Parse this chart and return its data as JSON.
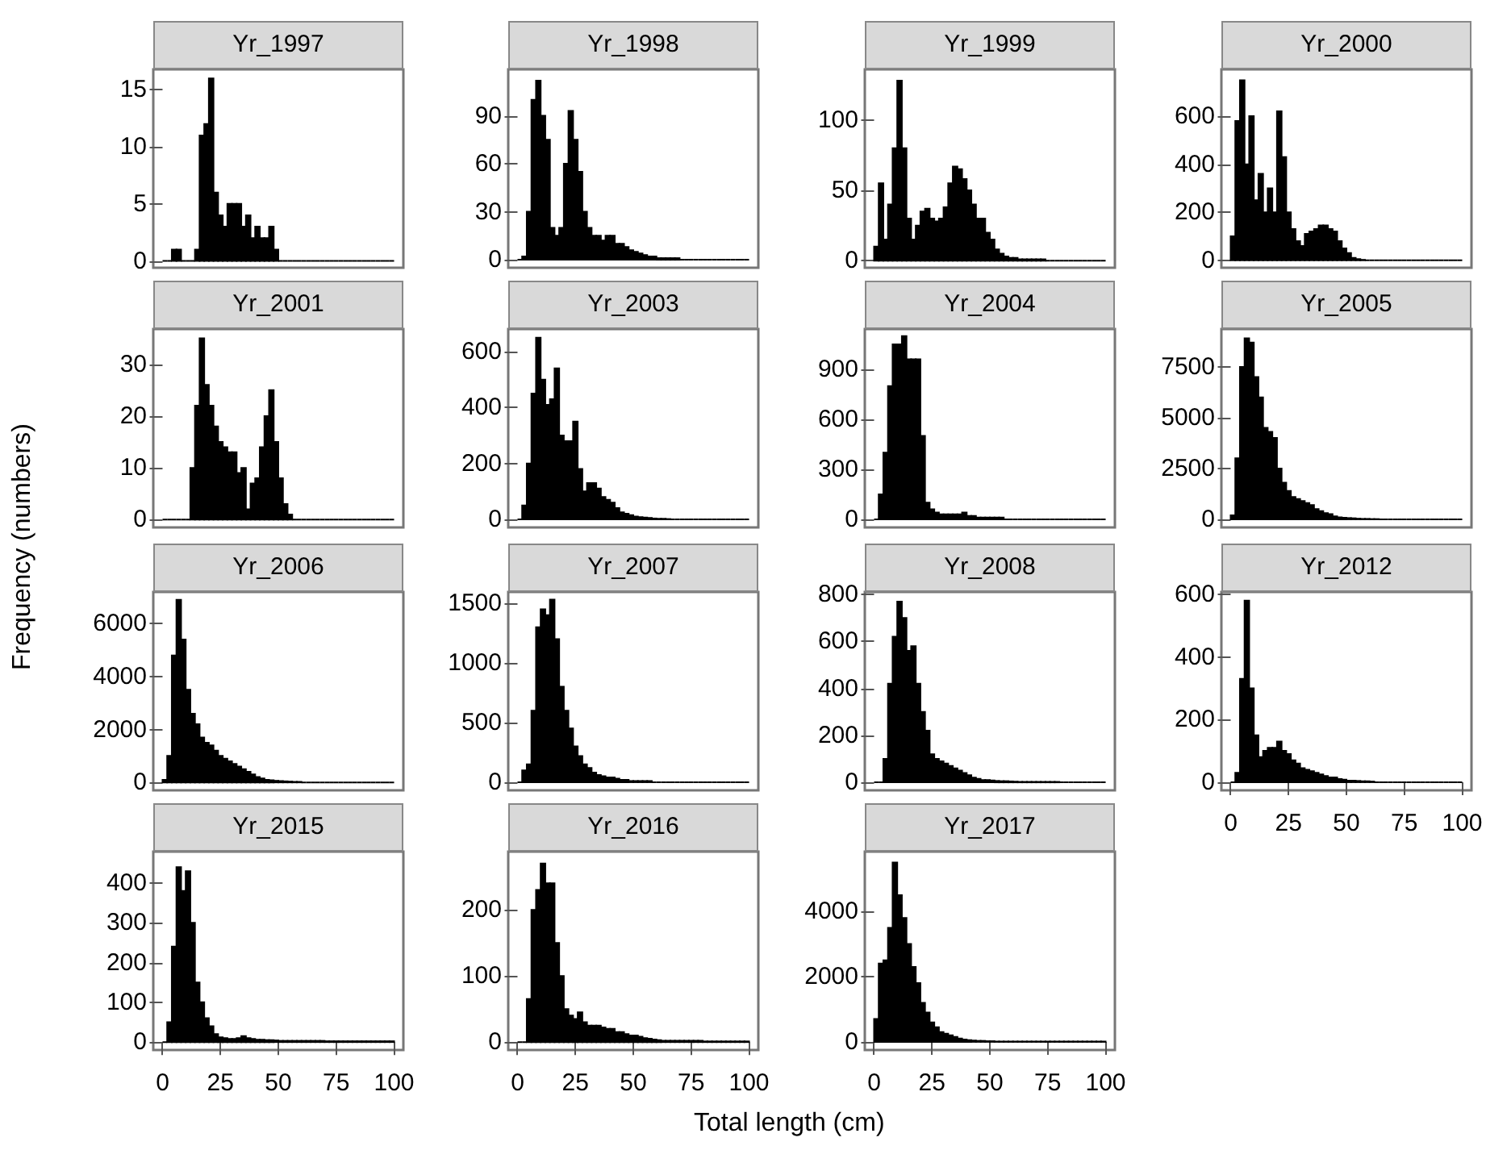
{
  "chart_data": [
    {
      "type": "histogram",
      "title": "Yr_1997",
      "color": "#000000",
      "bins": [
        0,
        2,
        4,
        6,
        8,
        10,
        12,
        14,
        16,
        18,
        20,
        22,
        24,
        26,
        28,
        30,
        32,
        34,
        36,
        38,
        40,
        42,
        44,
        46,
        48,
        50,
        52,
        54,
        56,
        58,
        60,
        62,
        64,
        66,
        68,
        70,
        72,
        74,
        76,
        78,
        80,
        82,
        84,
        86,
        88,
        90,
        92,
        94,
        96,
        98,
        100
      ],
      "values": [
        0,
        0,
        1,
        1,
        0,
        0,
        0,
        1,
        11,
        12,
        16,
        6,
        4,
        3,
        5,
        5,
        5,
        3,
        4,
        2,
        3,
        2,
        2,
        3,
        1,
        0,
        0,
        0,
        0,
        0,
        0,
        0,
        0,
        0,
        0,
        0,
        0,
        0,
        0,
        0,
        0,
        0,
        0,
        0,
        0,
        0,
        0,
        0,
        0,
        0
      ],
      "xlim": [
        -4,
        104
      ],
      "xticks": [
        0,
        25,
        50,
        75,
        100
      ],
      "ylim": [
        -0.6,
        16.8
      ],
      "yticks": [
        0,
        5,
        10,
        15
      ],
      "tick_labels": "y"
    },
    {
      "type": "histogram",
      "title": "Yr_1998",
      "color": "#000000",
      "bins": [
        0,
        2,
        4,
        6,
        8,
        10,
        12,
        14,
        16,
        18,
        20,
        22,
        24,
        26,
        28,
        30,
        32,
        34,
        36,
        38,
        40,
        42,
        44,
        46,
        48,
        50,
        52,
        54,
        56,
        58,
        60,
        62,
        64,
        66,
        68,
        70,
        72,
        74,
        76,
        78,
        80,
        82,
        84,
        86,
        88,
        90,
        92,
        94,
        96,
        98,
        100
      ],
      "values": [
        0,
        2,
        30,
        100,
        112,
        90,
        75,
        20,
        15,
        20,
        60,
        93,
        75,
        55,
        30,
        20,
        15,
        15,
        12,
        15,
        15,
        10,
        10,
        8,
        6,
        5,
        4,
        3,
        2,
        2,
        1,
        1,
        1,
        1,
        1,
        0,
        0,
        0,
        0,
        0,
        0,
        0,
        0,
        0,
        0,
        0,
        0,
        0,
        0,
        0
      ],
      "xlim": [
        -4,
        104
      ],
      "xticks": [
        0,
        25,
        50,
        75,
        100
      ],
      "ylim": [
        -5,
        119
      ],
      "yticks": [
        0,
        30,
        60,
        90
      ],
      "tick_labels": "y"
    },
    {
      "type": "histogram",
      "title": "Yr_1999",
      "color": "#000000",
      "bins": [
        0,
        2,
        4,
        6,
        8,
        10,
        12,
        14,
        16,
        18,
        20,
        22,
        24,
        26,
        28,
        30,
        32,
        34,
        36,
        38,
        40,
        42,
        44,
        46,
        48,
        50,
        52,
        54,
        56,
        58,
        60,
        62,
        64,
        66,
        68,
        70,
        72,
        74,
        76,
        78,
        80,
        82,
        84,
        86,
        88,
        90,
        92,
        94,
        96,
        98,
        100
      ],
      "values": [
        10,
        55,
        15,
        40,
        80,
        128,
        80,
        30,
        15,
        25,
        35,
        37,
        30,
        28,
        30,
        38,
        55,
        67,
        65,
        58,
        50,
        40,
        30,
        30,
        20,
        15,
        8,
        5,
        3,
        2,
        2,
        1,
        1,
        1,
        1,
        1,
        1,
        0,
        0,
        0,
        0,
        0,
        0,
        0,
        0,
        0,
        0,
        0,
        0,
        0
      ],
      "xlim": [
        -4,
        104
      ],
      "xticks": [
        0,
        25,
        50,
        75,
        100
      ],
      "ylim": [
        -5,
        136
      ],
      "yticks": [
        0,
        50,
        100
      ],
      "tick_labels": "y"
    },
    {
      "type": "histogram",
      "title": "Yr_2000",
      "color": "#000000",
      "bins": [
        0,
        2,
        4,
        6,
        8,
        10,
        12,
        14,
        16,
        18,
        20,
        22,
        24,
        26,
        28,
        30,
        32,
        34,
        36,
        38,
        40,
        42,
        44,
        46,
        48,
        50,
        52,
        54,
        56,
        58,
        60,
        62,
        64,
        66,
        68,
        70,
        72,
        74,
        76,
        78,
        80,
        82,
        84,
        86,
        88,
        90,
        92,
        94,
        96,
        98,
        100
      ],
      "values": [
        100,
        580,
        750,
        400,
        600,
        250,
        360,
        200,
        300,
        200,
        620,
        430,
        200,
        130,
        80,
        60,
        110,
        120,
        130,
        145,
        145,
        130,
        120,
        80,
        50,
        30,
        10,
        5,
        2,
        0,
        0,
        0,
        0,
        0,
        0,
        0,
        0,
        0,
        0,
        0,
        0,
        0,
        0,
        0,
        0,
        0,
        0,
        0,
        0,
        0
      ],
      "xlim": [
        -4,
        104
      ],
      "xticks": [
        0,
        25,
        50,
        75,
        100
      ],
      "ylim": [
        -31,
        795
      ],
      "yticks": [
        0,
        200,
        400,
        600
      ],
      "tick_labels": "y"
    },
    {
      "type": "histogram",
      "title": "Yr_2001",
      "color": "#000000",
      "bins": [
        0,
        2,
        4,
        6,
        8,
        10,
        12,
        14,
        16,
        18,
        20,
        22,
        24,
        26,
        28,
        30,
        32,
        34,
        36,
        38,
        40,
        42,
        44,
        46,
        48,
        50,
        52,
        54,
        56,
        58,
        60,
        62,
        64,
        66,
        68,
        70,
        72,
        74,
        76,
        78,
        80,
        82,
        84,
        86,
        88,
        90,
        92,
        94,
        96,
        98,
        100
      ],
      "values": [
        0,
        0,
        0,
        0,
        0,
        0,
        10,
        22,
        35,
        26,
        22,
        18,
        15,
        14,
        13,
        13,
        9,
        10,
        2,
        7,
        8,
        14,
        20,
        25,
        15,
        8,
        3,
        1,
        0,
        0,
        0,
        0,
        0,
        0,
        0,
        0,
        0,
        0,
        0,
        0,
        0,
        0,
        0,
        0,
        0,
        0,
        0,
        0,
        0,
        0
      ],
      "xlim": [
        -4,
        104
      ],
      "xticks": [
        0,
        25,
        50,
        75,
        100
      ],
      "ylim": [
        -1.5,
        36.8
      ],
      "yticks": [
        0,
        10,
        20,
        30
      ],
      "tick_labels": "y"
    },
    {
      "type": "histogram",
      "title": "Yr_2003",
      "color": "#000000",
      "bins": [
        0,
        2,
        4,
        6,
        8,
        10,
        12,
        14,
        16,
        18,
        20,
        22,
        24,
        26,
        28,
        30,
        32,
        34,
        36,
        38,
        40,
        42,
        44,
        46,
        48,
        50,
        52,
        54,
        56,
        58,
        60,
        62,
        64,
        66,
        68,
        70,
        72,
        74,
        76,
        78,
        80,
        82,
        84,
        86,
        88,
        90,
        92,
        94,
        96,
        98,
        100
      ],
      "values": [
        0,
        50,
        200,
        450,
        650,
        500,
        410,
        430,
        540,
        300,
        280,
        280,
        350,
        180,
        100,
        130,
        130,
        110,
        80,
        70,
        60,
        40,
        25,
        20,
        15,
        10,
        8,
        6,
        5,
        3,
        2,
        2,
        1,
        0,
        0,
        0,
        0,
        0,
        0,
        0,
        0,
        0,
        0,
        0,
        0,
        0,
        0,
        0,
        0,
        0
      ],
      "xlim": [
        -4,
        104
      ],
      "xticks": [
        0,
        25,
        50,
        75,
        100
      ],
      "ylim": [
        -29,
        681
      ],
      "yticks": [
        0,
        200,
        400,
        600
      ],
      "tick_labels": "y"
    },
    {
      "type": "histogram",
      "title": "Yr_2004",
      "color": "#000000",
      "bins": [
        0,
        2,
        4,
        6,
        8,
        10,
        12,
        14,
        16,
        18,
        20,
        22,
        24,
        26,
        28,
        30,
        32,
        34,
        36,
        38,
        40,
        42,
        44,
        46,
        48,
        50,
        52,
        54,
        56,
        58,
        60,
        62,
        64,
        66,
        68,
        70,
        72,
        74,
        76,
        78,
        80,
        82,
        84,
        86,
        88,
        90,
        92,
        94,
        96,
        98,
        100
      ],
      "values": [
        0,
        150,
        400,
        800,
        1050,
        1050,
        1100,
        960,
        960,
        960,
        500,
        100,
        60,
        40,
        30,
        30,
        30,
        30,
        30,
        40,
        20,
        20,
        10,
        10,
        10,
        10,
        10,
        10,
        0,
        0,
        0,
        0,
        0,
        0,
        0,
        0,
        0,
        0,
        0,
        0,
        0,
        0,
        0,
        0,
        0,
        0,
        0,
        0,
        0,
        0
      ],
      "xlim": [
        -4,
        104
      ],
      "xticks": [
        0,
        25,
        50,
        75,
        100
      ],
      "ylim": [
        -49,
        1142
      ],
      "yticks": [
        0,
        300,
        600,
        900
      ],
      "tick_labels": "y"
    },
    {
      "type": "histogram",
      "title": "Yr_2005",
      "color": "#000000",
      "bins": [
        0,
        2,
        4,
        6,
        8,
        10,
        12,
        14,
        16,
        18,
        20,
        22,
        24,
        26,
        28,
        30,
        32,
        34,
        36,
        38,
        40,
        42,
        44,
        46,
        48,
        50,
        52,
        54,
        56,
        58,
        60,
        62,
        64,
        66,
        68,
        70,
        72,
        74,
        76,
        78,
        80,
        82,
        84,
        86,
        88,
        90,
        92,
        94,
        96,
        98,
        100
      ],
      "values": [
        200,
        3000,
        7500,
        8900,
        8700,
        7000,
        6000,
        4500,
        4300,
        4000,
        2500,
        1800,
        1400,
        1100,
        1000,
        900,
        800,
        700,
        500,
        400,
        300,
        250,
        150,
        100,
        80,
        60,
        50,
        30,
        20,
        20,
        10,
        10,
        0,
        0,
        0,
        0,
        0,
        0,
        0,
        0,
        0,
        0,
        0,
        0,
        0,
        0,
        0,
        0,
        0,
        0
      ],
      "xlim": [
        -4,
        104
      ],
      "xticks": [
        0,
        25,
        50,
        75,
        100
      ],
      "ylim": [
        -400,
        9360
      ],
      "yticks": [
        0,
        2500,
        5000,
        7500
      ],
      "tick_labels": "y"
    },
    {
      "type": "histogram",
      "title": "Yr_2006",
      "ylabel": "Frequency (numbers)",
      "color": "#000000",
      "bins": [
        0,
        2,
        4,
        6,
        8,
        10,
        12,
        14,
        16,
        18,
        20,
        22,
        24,
        26,
        28,
        30,
        32,
        34,
        36,
        38,
        40,
        42,
        44,
        46,
        48,
        50,
        52,
        54,
        56,
        58,
        60,
        62,
        64,
        66,
        68,
        70,
        72,
        74,
        76,
        78,
        80,
        82,
        84,
        86,
        88,
        90,
        92,
        94,
        96,
        98,
        100
      ],
      "values": [
        100,
        1000,
        4800,
        6900,
        5400,
        3500,
        2600,
        2200,
        1700,
        1500,
        1400,
        1200,
        1000,
        900,
        800,
        700,
        600,
        500,
        400,
        300,
        200,
        150,
        100,
        80,
        60,
        50,
        40,
        30,
        20,
        20,
        0,
        0,
        0,
        0,
        0,
        0,
        0,
        0,
        0,
        0,
        0,
        0,
        0,
        0,
        0,
        0,
        0,
        0,
        0,
        0
      ],
      "xlim": [
        -4,
        104
      ],
      "xticks": [
        0,
        25,
        50,
        75,
        100
      ],
      "ylim": [
        -300,
        7200
      ],
      "yticks": [
        0,
        2000,
        4000,
        6000
      ],
      "tick_labels": "y"
    },
    {
      "type": "histogram",
      "title": "Yr_2007",
      "color": "#000000",
      "bins": [
        0,
        2,
        4,
        6,
        8,
        10,
        12,
        14,
        16,
        18,
        20,
        22,
        24,
        26,
        28,
        30,
        32,
        34,
        36,
        38,
        40,
        42,
        44,
        46,
        48,
        50,
        52,
        54,
        56,
        58,
        60,
        62,
        64,
        66,
        68,
        70,
        72,
        74,
        76,
        78,
        80,
        82,
        84,
        86,
        88,
        90,
        92,
        94,
        96,
        98,
        100
      ],
      "values": [
        0,
        100,
        150,
        600,
        1300,
        1450,
        1400,
        1530,
        1200,
        800,
        600,
        450,
        300,
        220,
        150,
        120,
        80,
        60,
        50,
        40,
        40,
        30,
        20,
        20,
        10,
        10,
        10,
        10,
        10,
        0,
        0,
        0,
        0,
        0,
        0,
        0,
        0,
        0,
        0,
        0,
        0,
        0,
        0,
        0,
        0,
        0,
        0,
        0,
        0,
        0
      ],
      "xlim": [
        -4,
        104
      ],
      "xticks": [
        0,
        25,
        50,
        75,
        100
      ],
      "ylim": [
        -68,
        1595
      ],
      "yticks": [
        0,
        500,
        1000,
        1500
      ],
      "tick_labels": "y"
    },
    {
      "type": "histogram",
      "title": "Yr_2008",
      "color": "#000000",
      "bins": [
        0,
        2,
        4,
        6,
        8,
        10,
        12,
        14,
        16,
        18,
        20,
        22,
        24,
        26,
        28,
        30,
        32,
        34,
        36,
        38,
        40,
        42,
        44,
        46,
        48,
        50,
        52,
        54,
        56,
        58,
        60,
        62,
        64,
        66,
        68,
        70,
        72,
        74,
        76,
        78,
        80,
        82,
        84,
        86,
        88,
        90,
        92,
        94,
        96,
        98,
        100
      ],
      "values": [
        0,
        0,
        100,
        420,
        620,
        770,
        700,
        560,
        580,
        420,
        300,
        220,
        120,
        100,
        90,
        80,
        70,
        60,
        50,
        40,
        30,
        20,
        15,
        10,
        10,
        8,
        6,
        5,
        5,
        4,
        3,
        2,
        2,
        2,
        2,
        2,
        2,
        2,
        2,
        2,
        0,
        0,
        0,
        0,
        0,
        0,
        0,
        0,
        0,
        0
      ],
      "xlim": [
        -4,
        104
      ],
      "xticks": [
        0,
        25,
        50,
        75,
        100
      ],
      "ylim": [
        -34,
        811
      ],
      "yticks": [
        0,
        200,
        400,
        600,
        800
      ],
      "tick_labels": "y"
    },
    {
      "type": "histogram",
      "title": "Yr_2012",
      "color": "#000000",
      "bins": [
        0,
        2,
        4,
        6,
        8,
        10,
        12,
        14,
        16,
        18,
        20,
        22,
        24,
        26,
        28,
        30,
        32,
        34,
        36,
        38,
        40,
        42,
        44,
        46,
        48,
        50,
        52,
        54,
        56,
        58,
        60,
        62,
        64,
        66,
        68,
        70,
        72,
        74,
        76,
        78,
        80,
        82,
        84,
        86,
        88,
        90,
        92,
        94,
        96,
        98,
        100
      ],
      "values": [
        0,
        30,
        330,
        580,
        300,
        150,
        80,
        100,
        110,
        110,
        130,
        100,
        90,
        70,
        60,
        45,
        40,
        35,
        30,
        25,
        20,
        15,
        15,
        10,
        8,
        5,
        5,
        4,
        3,
        3,
        2,
        0,
        0,
        0,
        0,
        0,
        0,
        0,
        0,
        0,
        0,
        0,
        0,
        0,
        0,
        0,
        0,
        0,
        0,
        0
      ],
      "xlim": [
        -4,
        104
      ],
      "xticks": [
        0,
        25,
        50,
        75,
        100
      ],
      "ylim": [
        -26,
        608
      ],
      "yticks": [
        0,
        200,
        400,
        600
      ]
    },
    {
      "type": "histogram",
      "title": "Yr_2015",
      "color": "#000000",
      "bins": [
        0,
        2,
        4,
        6,
        8,
        10,
        12,
        14,
        16,
        18,
        20,
        22,
        24,
        26,
        28,
        30,
        32,
        34,
        36,
        38,
        40,
        42,
        44,
        46,
        48,
        50,
        52,
        54,
        56,
        58,
        60,
        62,
        64,
        66,
        68,
        70,
        72,
        74,
        76,
        78,
        80,
        82,
        84,
        86,
        88,
        90,
        92,
        94,
        96,
        98,
        100
      ],
      "values": [
        0,
        50,
        240,
        440,
        380,
        430,
        300,
        150,
        100,
        60,
        40,
        20,
        12,
        10,
        8,
        8,
        10,
        15,
        10,
        8,
        6,
        6,
        5,
        5,
        4,
        3,
        3,
        3,
        3,
        3,
        3,
        3,
        3,
        3,
        3,
        2,
        2,
        2,
        2,
        2,
        2,
        2,
        2,
        2,
        2,
        2,
        2,
        2,
        2,
        2
      ],
      "xlim": [
        -4,
        104
      ],
      "xticks": [
        0,
        25,
        50,
        75,
        100
      ],
      "ylim": [
        -20,
        479
      ],
      "yticks": [
        0,
        100,
        200,
        300,
        400
      ]
    },
    {
      "type": "histogram",
      "title": "Yr_2016",
      "xlabel": "Total length (cm)",
      "color": "#000000",
      "bins": [
        0,
        2,
        4,
        6,
        8,
        10,
        12,
        14,
        16,
        18,
        20,
        22,
        24,
        26,
        28,
        30,
        32,
        34,
        36,
        38,
        40,
        42,
        44,
        46,
        48,
        50,
        52,
        54,
        56,
        58,
        60,
        62,
        64,
        66,
        68,
        70,
        72,
        74,
        76,
        78,
        80,
        82,
        84,
        86,
        88,
        90,
        92,
        94,
        96,
        98,
        100
      ],
      "values": [
        0,
        0,
        65,
        200,
        230,
        270,
        240,
        240,
        150,
        100,
        50,
        40,
        35,
        45,
        30,
        25,
        25,
        25,
        22,
        20,
        20,
        15,
        15,
        12,
        10,
        10,
        8,
        6,
        5,
        4,
        3,
        2,
        2,
        2,
        2,
        2,
        2,
        2,
        2,
        2,
        1,
        1,
        1,
        1,
        1,
        1,
        1,
        1,
        1,
        1
      ],
      "xlim": [
        -4,
        104
      ],
      "xticks": [
        0,
        25,
        50,
        75,
        100
      ],
      "ylim": [
        -12,
        288
      ],
      "yticks": [
        0,
        100,
        200
      ]
    },
    {
      "type": "histogram",
      "title": "Yr_2017",
      "color": "#000000",
      "bins": [
        0,
        2,
        4,
        6,
        8,
        10,
        12,
        14,
        16,
        18,
        20,
        22,
        24,
        26,
        28,
        30,
        32,
        34,
        36,
        38,
        40,
        42,
        44,
        46,
        48,
        50,
        52,
        54,
        56,
        58,
        60,
        62,
        64,
        66,
        68,
        70,
        72,
        74,
        76,
        78,
        80,
        82,
        84,
        86,
        88,
        90,
        92,
        94,
        96,
        98,
        100
      ],
      "values": [
        700,
        2400,
        2500,
        3500,
        5500,
        4500,
        3800,
        3000,
        2300,
        1800,
        1200,
        900,
        600,
        450,
        300,
        250,
        200,
        150,
        100,
        70,
        50,
        40,
        30,
        30,
        20,
        20,
        10,
        10,
        10,
        10,
        10,
        10,
        10,
        10,
        10,
        10,
        10,
        10,
        10,
        10,
        10,
        10,
        10,
        10,
        10,
        10,
        10,
        10,
        10,
        10
      ],
      "xlim": [
        -4,
        104
      ],
      "xticks": [
        0,
        25,
        50,
        75,
        100
      ],
      "ylim": [
        -250,
        5835
      ],
      "yticks": [
        0,
        2000,
        4000
      ]
    }
  ]
}
